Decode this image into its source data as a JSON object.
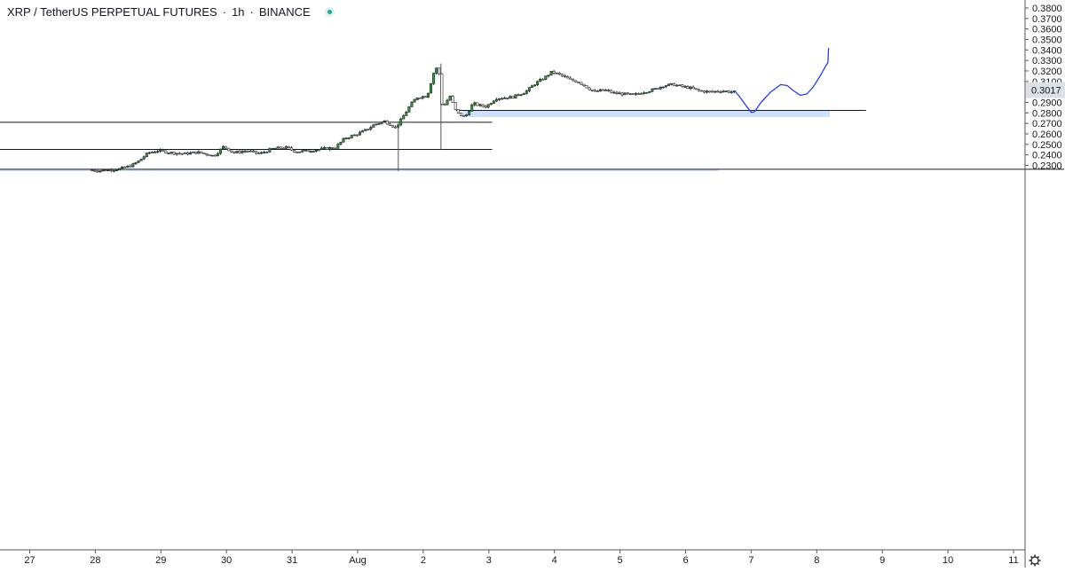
{
  "legend": {
    "symbol": "XRP / TetherUS PERPETUAL FUTURES",
    "interval": "1h",
    "exchange": "BINANCE",
    "status_color": "#26a69a"
  },
  "chart_data": {
    "type": "candlestick",
    "yaxis": {
      "ticks": [
        "0.3800",
        "0.3700",
        "0.3600",
        "0.3500",
        "0.3400",
        "0.3300",
        "0.3200",
        "0.3100",
        "0.2900",
        "0.2800",
        "0.2700",
        "0.2600",
        "0.2500",
        "0.2400",
        "0.2300"
      ],
      "range": [
        0.226,
        0.382
      ],
      "position": "right"
    },
    "xaxis": {
      "ticks": [
        {
          "label": "27",
          "day": -5
        },
        {
          "label": "28",
          "day": -4
        },
        {
          "label": "29",
          "day": -3
        },
        {
          "label": "30",
          "day": -2
        },
        {
          "label": "31",
          "day": -1
        },
        {
          "label": "Aug",
          "day": 0
        },
        {
          "label": "2",
          "day": 1
        },
        {
          "label": "3",
          "day": 2
        },
        {
          "label": "4",
          "day": 3
        },
        {
          "label": "5",
          "day": 4
        },
        {
          "label": "6",
          "day": 5
        },
        {
          "label": "7",
          "day": 6
        },
        {
          "label": "8",
          "day": 7
        },
        {
          "label": "9",
          "day": 8
        },
        {
          "label": "10",
          "day": 9
        },
        {
          "label": "11",
          "day": 10
        }
      ]
    },
    "last_price": {
      "label": "0.3017",
      "value": 0.3017
    },
    "price_path": [
      [
        -4.05,
        0.2255
      ],
      [
        -3.9,
        0.2248
      ],
      [
        -3.6,
        0.2265
      ],
      [
        -3.4,
        0.23
      ],
      [
        -3.3,
        0.234
      ],
      [
        -3.15,
        0.242
      ],
      [
        -3.0,
        0.244
      ],
      [
        -2.8,
        0.242
      ],
      [
        -2.6,
        0.241
      ],
      [
        -2.4,
        0.2425
      ],
      [
        -2.15,
        0.239
      ],
      [
        -2.0,
        0.248
      ],
      [
        -1.85,
        0.242
      ],
      [
        -1.65,
        0.244
      ],
      [
        -1.45,
        0.241
      ],
      [
        -1.25,
        0.246
      ],
      [
        -1.05,
        0.247
      ],
      [
        -0.9,
        0.243
      ],
      [
        -0.7,
        0.244
      ],
      [
        -0.45,
        0.246
      ],
      [
        -0.3,
        0.247
      ],
      [
        -0.15,
        0.256
      ],
      [
        0.0,
        0.259
      ],
      [
        0.15,
        0.263
      ],
      [
        0.3,
        0.269
      ],
      [
        0.45,
        0.272
      ],
      [
        0.62,
        0.266
      ],
      [
        0.7,
        0.273
      ],
      [
        0.85,
        0.288
      ],
      [
        0.95,
        0.295
      ],
      [
        1.1,
        0.296
      ],
      [
        1.2,
        0.318
      ],
      [
        1.27,
        0.326
      ],
      [
        1.33,
        0.285
      ],
      [
        1.45,
        0.296
      ],
      [
        1.55,
        0.28
      ],
      [
        1.68,
        0.276
      ],
      [
        1.8,
        0.289
      ],
      [
        1.9,
        0.287
      ],
      [
        2.0,
        0.286
      ],
      [
        2.15,
        0.294
      ],
      [
        2.4,
        0.295
      ],
      [
        2.6,
        0.3
      ],
      [
        2.75,
        0.308
      ],
      [
        2.9,
        0.314
      ],
      [
        3.0,
        0.319
      ],
      [
        3.1,
        0.317
      ],
      [
        3.2,
        0.314
      ],
      [
        3.3,
        0.311
      ],
      [
        3.4,
        0.31
      ],
      [
        3.55,
        0.304
      ],
      [
        3.65,
        0.3
      ],
      [
        3.8,
        0.302
      ],
      [
        3.95,
        0.299
      ],
      [
        4.1,
        0.298
      ],
      [
        4.25,
        0.297
      ],
      [
        4.4,
        0.3
      ],
      [
        4.55,
        0.302
      ],
      [
        4.7,
        0.306
      ],
      [
        4.85,
        0.307
      ],
      [
        5.0,
        0.305
      ],
      [
        5.1,
        0.304
      ],
      [
        5.25,
        0.301
      ],
      [
        5.4,
        0.3
      ],
      [
        5.6,
        0.301
      ],
      [
        5.75,
        0.3
      ]
    ],
    "zones": [
      {
        "x1": 1.6,
        "x2": 7.2,
        "y1": 0.2824,
        "y2": 0.276,
        "color": "#cfe0fa"
      },
      {
        "x1": -5.5,
        "x2": 5.5,
        "y1": 0.2262,
        "y2": 0.2245,
        "color": "#cfe0fa"
      }
    ],
    "hlines": [
      {
        "x1": 1.5,
        "x2": 7.75,
        "y": 0.2824
      },
      {
        "x1": -5.5,
        "x2": 2.05,
        "y": 0.2711
      },
      {
        "x1": -5.5,
        "x2": 2.05,
        "y": 0.2452
      },
      {
        "x1": -5.5,
        "x2": 11.6,
        "y": 0.2263
      }
    ],
    "vlines": [
      {
        "x": 0.62,
        "y1": 0.272,
        "y2": 0.2245
      },
      {
        "x": 1.27,
        "y1": 0.327,
        "y2": 0.2452
      }
    ],
    "projection": [
      [
        5.75,
        0.301
      ],
      [
        5.83,
        0.295
      ],
      [
        5.92,
        0.287
      ],
      [
        6.0,
        0.2805
      ],
      [
        6.05,
        0.281
      ],
      [
        6.15,
        0.29
      ],
      [
        6.3,
        0.3
      ],
      [
        6.45,
        0.307
      ],
      [
        6.55,
        0.306
      ],
      [
        6.65,
        0.301
      ],
      [
        6.75,
        0.2968
      ],
      [
        6.85,
        0.298
      ],
      [
        6.95,
        0.305
      ],
      [
        7.05,
        0.315
      ],
      [
        7.12,
        0.323
      ],
      [
        7.17,
        0.328
      ],
      [
        7.18,
        0.342
      ]
    ]
  }
}
